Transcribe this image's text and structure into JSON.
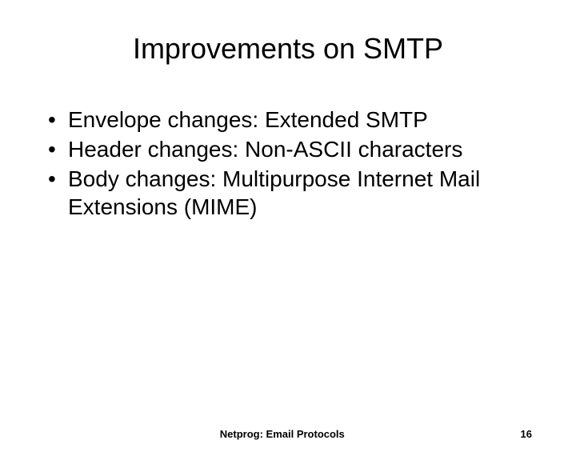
{
  "slide": {
    "title": "Improvements on SMTP",
    "bullets": [
      "Envelope changes: Extended SMTP",
      "Header changes: Non-ASCII characters",
      "Body changes: Multipurpose Internet Mail Extensions (MIME)"
    ],
    "footer_text": "Netprog:  Email Protocols",
    "page_number": "16"
  },
  "style": {
    "background_color": "#ffffff",
    "text_color": "#000000",
    "title_fontsize": 36,
    "body_fontsize": 28,
    "footer_fontsize": 13,
    "font_family": "Arial, Helvetica, sans-serif"
  }
}
